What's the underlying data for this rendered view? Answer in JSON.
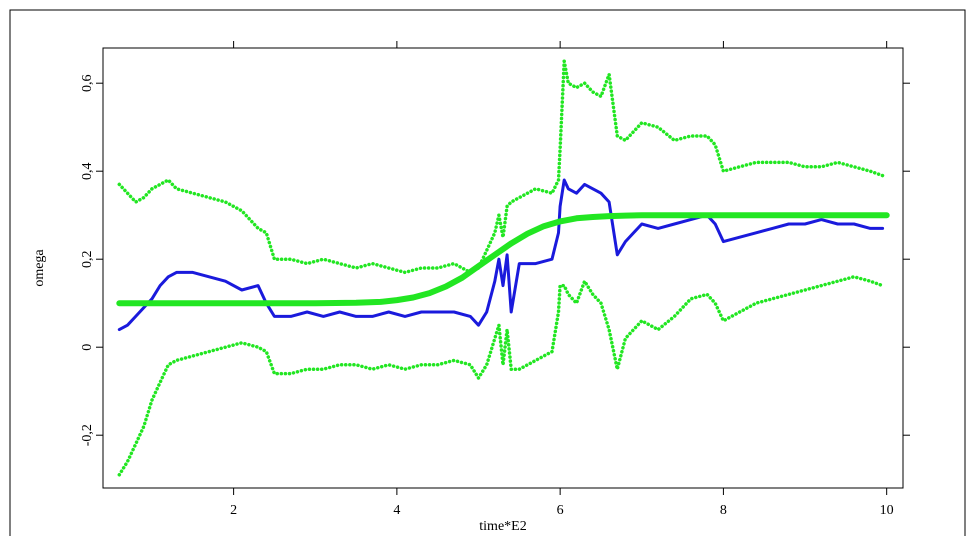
{
  "chart_data": {
    "type": "line",
    "xlabel": "time*E2",
    "ylabel": "omega",
    "xlim": [
      0.4,
      10.2
    ],
    "ylim": [
      -0.32,
      0.68
    ],
    "x_ticks": [
      2,
      4,
      6,
      8,
      10
    ],
    "x_tick_labels": [
      "2",
      "4",
      "6",
      "8",
      "10"
    ],
    "y_ticks": [
      -0.2,
      0,
      0.2,
      0.4,
      0.6
    ],
    "y_tick_labels": [
      "-0,2",
      "0",
      "0,2",
      "0,4",
      "0,6"
    ],
    "grid": false,
    "legend": "none",
    "series": [
      {
        "style": "dotted",
        "color": "#22e622",
        "x": [
          0.6,
          0.7,
          0.8,
          0.9,
          1.0,
          1.1,
          1.2,
          1.3,
          1.5,
          1.7,
          1.9,
          2.1,
          2.3,
          2.4,
          2.5,
          2.7,
          2.9,
          3.1,
          3.3,
          3.5,
          3.7,
          3.9,
          4.1,
          4.3,
          4.5,
          4.7,
          4.9,
          5.0,
          5.1,
          5.2,
          5.25,
          5.3,
          5.35,
          5.4,
          5.5,
          5.7,
          5.9,
          5.98,
          6.0,
          6.05,
          6.1,
          6.2,
          6.3,
          6.4,
          6.5,
          6.6,
          6.7,
          6.8,
          7.0,
          7.2,
          7.4,
          7.6,
          7.8,
          7.9,
          8.0,
          8.2,
          8.4,
          8.6,
          8.8,
          9.0,
          9.2,
          9.4,
          9.6,
          9.8,
          9.95
        ],
        "values": [
          0.37,
          0.35,
          0.33,
          0.34,
          0.36,
          0.37,
          0.38,
          0.36,
          0.35,
          0.34,
          0.33,
          0.31,
          0.27,
          0.26,
          0.2,
          0.2,
          0.19,
          0.2,
          0.19,
          0.18,
          0.19,
          0.18,
          0.17,
          0.18,
          0.18,
          0.19,
          0.17,
          0.18,
          0.22,
          0.26,
          0.3,
          0.25,
          0.32,
          0.33,
          0.34,
          0.36,
          0.35,
          0.38,
          0.45,
          0.65,
          0.6,
          0.59,
          0.6,
          0.58,
          0.57,
          0.62,
          0.48,
          0.47,
          0.51,
          0.5,
          0.47,
          0.48,
          0.48,
          0.46,
          0.4,
          0.41,
          0.42,
          0.42,
          0.42,
          0.41,
          0.41,
          0.42,
          0.41,
          0.4,
          0.39
        ]
      },
      {
        "style": "solid",
        "color": "#1a1adc",
        "x": [
          0.6,
          0.7,
          0.8,
          0.9,
          1.0,
          1.1,
          1.2,
          1.3,
          1.5,
          1.7,
          1.9,
          2.1,
          2.3,
          2.4,
          2.5,
          2.7,
          2.9,
          3.1,
          3.3,
          3.5,
          3.7,
          3.9,
          4.1,
          4.3,
          4.5,
          4.7,
          4.9,
          5.0,
          5.1,
          5.2,
          5.25,
          5.3,
          5.35,
          5.4,
          5.5,
          5.7,
          5.9,
          5.98,
          6.0,
          6.05,
          6.1,
          6.2,
          6.3,
          6.4,
          6.5,
          6.6,
          6.7,
          6.8,
          7.0,
          7.2,
          7.4,
          7.6,
          7.8,
          7.9,
          8.0,
          8.2,
          8.4,
          8.6,
          8.8,
          9.0,
          9.2,
          9.4,
          9.6,
          9.8,
          9.95
        ],
        "values": [
          0.04,
          0.05,
          0.07,
          0.09,
          0.11,
          0.14,
          0.16,
          0.17,
          0.17,
          0.16,
          0.15,
          0.13,
          0.14,
          0.1,
          0.07,
          0.07,
          0.08,
          0.07,
          0.08,
          0.07,
          0.07,
          0.08,
          0.07,
          0.08,
          0.08,
          0.08,
          0.07,
          0.05,
          0.08,
          0.15,
          0.2,
          0.14,
          0.21,
          0.08,
          0.19,
          0.19,
          0.2,
          0.26,
          0.32,
          0.38,
          0.36,
          0.35,
          0.37,
          0.36,
          0.35,
          0.33,
          0.21,
          0.24,
          0.28,
          0.27,
          0.28,
          0.29,
          0.3,
          0.28,
          0.24,
          0.25,
          0.26,
          0.27,
          0.28,
          0.28,
          0.29,
          0.28,
          0.28,
          0.27,
          0.27
        ]
      },
      {
        "style": "dotted",
        "color": "#22e622",
        "x": [
          0.6,
          0.7,
          0.8,
          0.9,
          1.0,
          1.1,
          1.2,
          1.3,
          1.5,
          1.7,
          1.9,
          2.1,
          2.3,
          2.4,
          2.5,
          2.7,
          2.9,
          3.1,
          3.3,
          3.5,
          3.7,
          3.9,
          4.1,
          4.3,
          4.5,
          4.7,
          4.9,
          5.0,
          5.1,
          5.2,
          5.25,
          5.3,
          5.35,
          5.4,
          5.5,
          5.7,
          5.9,
          5.98,
          6.0,
          6.05,
          6.1,
          6.2,
          6.3,
          6.4,
          6.5,
          6.6,
          6.7,
          6.8,
          7.0,
          7.2,
          7.4,
          7.6,
          7.8,
          7.9,
          8.0,
          8.2,
          8.4,
          8.6,
          8.8,
          9.0,
          9.2,
          9.4,
          9.6,
          9.8,
          9.95
        ],
        "values": [
          -0.29,
          -0.26,
          -0.22,
          -0.18,
          -0.12,
          -0.08,
          -0.04,
          -0.03,
          -0.02,
          -0.01,
          0.0,
          0.01,
          0.0,
          -0.01,
          -0.06,
          -0.06,
          -0.05,
          -0.05,
          -0.04,
          -0.04,
          -0.05,
          -0.04,
          -0.05,
          -0.04,
          -0.04,
          -0.03,
          -0.04,
          -0.07,
          -0.04,
          0.02,
          0.05,
          -0.04,
          0.04,
          -0.05,
          -0.05,
          -0.03,
          -0.01,
          0.08,
          0.14,
          0.14,
          0.12,
          0.1,
          0.15,
          0.12,
          0.1,
          0.04,
          -0.05,
          0.02,
          0.06,
          0.04,
          0.07,
          0.11,
          0.12,
          0.1,
          0.06,
          0.08,
          0.1,
          0.11,
          0.12,
          0.13,
          0.14,
          0.15,
          0.16,
          0.15,
          0.14
        ]
      },
      {
        "style": "solid-thick",
        "color": "#22e622",
        "x": [
          0.6,
          1.0,
          1.5,
          2.0,
          2.5,
          3.0,
          3.5,
          3.8,
          4.0,
          4.2,
          4.4,
          4.6,
          4.8,
          5.0,
          5.2,
          5.4,
          5.6,
          5.8,
          6.0,
          6.2,
          6.4,
          6.6,
          6.8,
          7.0,
          7.5,
          8.0,
          8.5,
          9.0,
          9.5,
          10.0
        ],
        "values": [
          0.1,
          0.1,
          0.1,
          0.1,
          0.1,
          0.1,
          0.101,
          0.103,
          0.107,
          0.113,
          0.123,
          0.138,
          0.158,
          0.184,
          0.21,
          0.236,
          0.258,
          0.275,
          0.286,
          0.293,
          0.296,
          0.298,
          0.299,
          0.3,
          0.3,
          0.3,
          0.3,
          0.3,
          0.3,
          0.3
        ]
      }
    ]
  }
}
